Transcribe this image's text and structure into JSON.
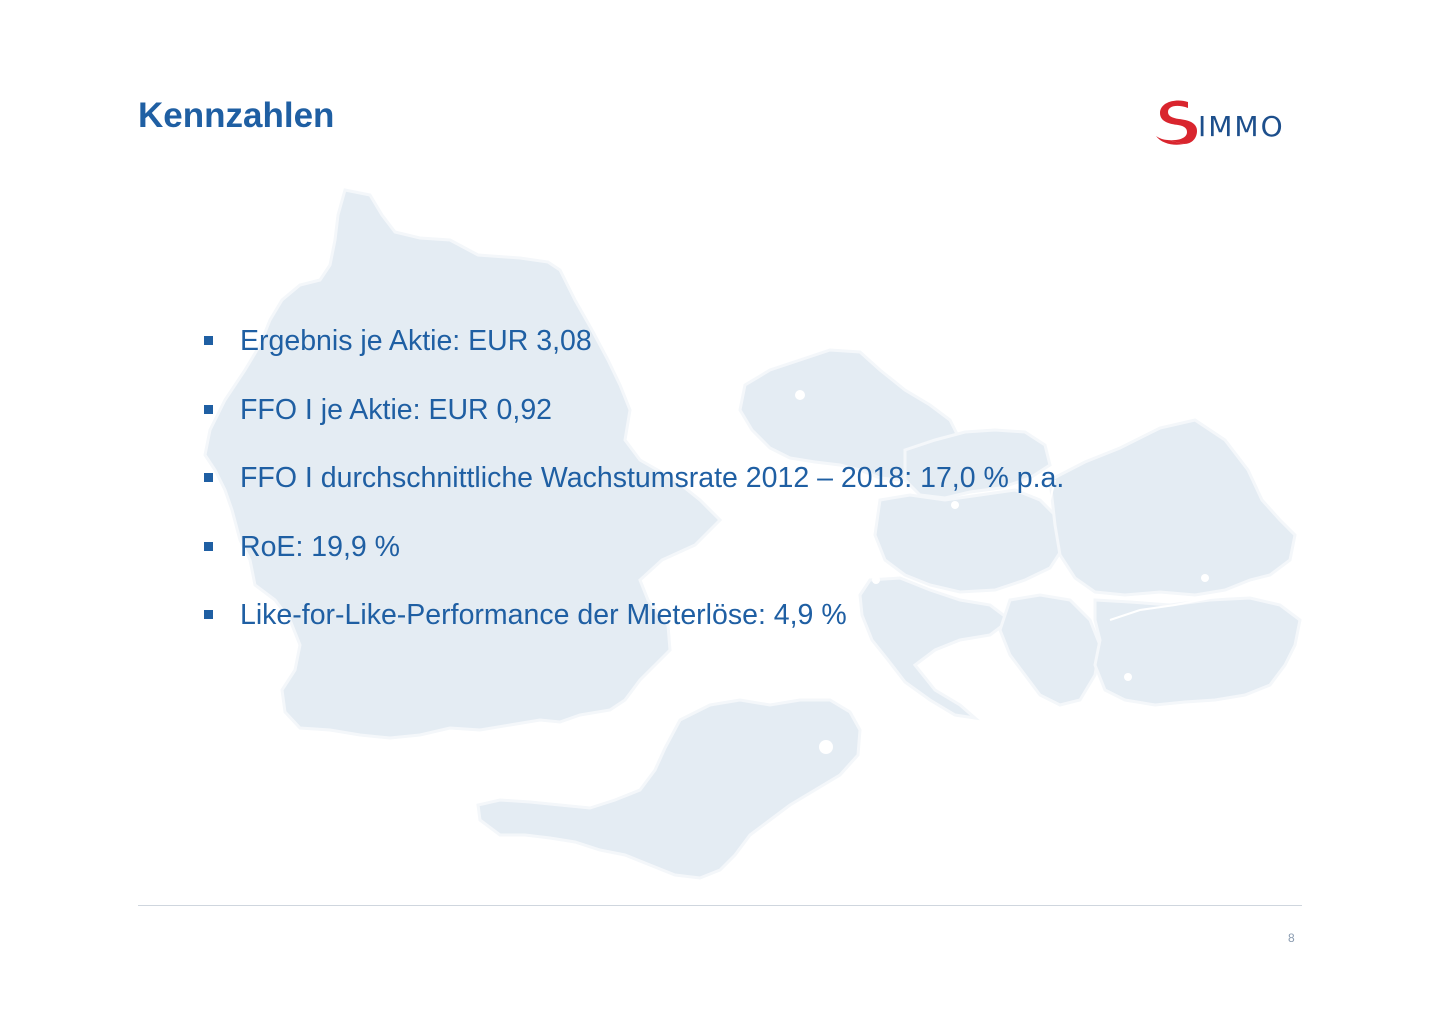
{
  "slide": {
    "title": "Kennzahlen",
    "page_number": "8"
  },
  "logo": {
    "text": "IMMO",
    "symbol": "s-logo-icon",
    "colors": {
      "symbol": "#d9252e",
      "text": "#1d4f8c"
    }
  },
  "bullets": [
    {
      "text": "Ergebnis je Aktie: EUR 3,08"
    },
    {
      "text": "FFO I je Aktie: EUR 0,92"
    },
    {
      "text": "FFO I durchschnittliche Wachstumsrate 2012 – 2018: 17,0 % p.a."
    },
    {
      "text": "RoE: 19,9 %"
    },
    {
      "text": "Like-for-Like-Performance der Mieterlöse: 4,9 %"
    }
  ],
  "background": {
    "icon": "europe-map-icon",
    "color": "#e3ebf2"
  },
  "colors": {
    "accent": "#1f5fa3",
    "divider": "#cfd6de"
  }
}
